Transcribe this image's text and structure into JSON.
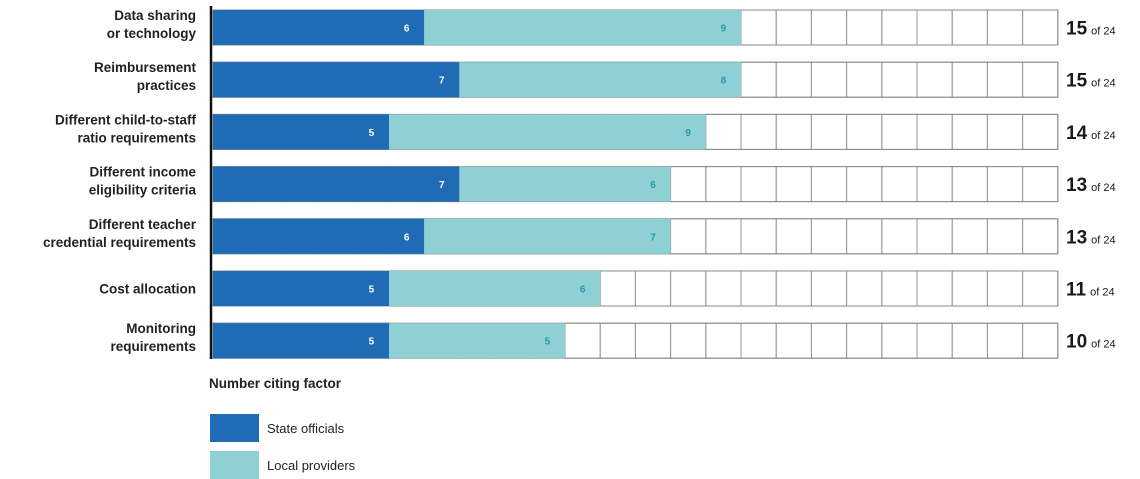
{
  "chart_data": {
    "type": "bar",
    "stacked": true,
    "categories": [
      "Data sharing or technology",
      "Reimbursement practices",
      "Different child-to-staff ratio requirements",
      "Different income eligibility criteria",
      "Different teacher credential requirements",
      "Cost allocation",
      "Monitoring requirements"
    ],
    "category_lines": [
      [
        "Data sharing",
        "or technology"
      ],
      [
        "Reimbursement",
        "practices"
      ],
      [
        "Different child-to-staff",
        "ratio requirements"
      ],
      [
        "Different income",
        "eligibility criteria"
      ],
      [
        "Different teacher",
        "credential requirements"
      ],
      [
        "Cost allocation"
      ],
      [
        "Monitoring",
        "requirements"
      ]
    ],
    "series": [
      {
        "name": "State officials",
        "color": "#1f6bb5",
        "label_color": "#ffffff",
        "values": [
          6,
          7,
          5,
          7,
          6,
          5,
          5
        ]
      },
      {
        "name": "Local providers",
        "color": "#8fd0d4",
        "label_color": "#2a9aa6",
        "values": [
          9,
          8,
          9,
          6,
          7,
          6,
          5
        ]
      }
    ],
    "totals": [
      15,
      15,
      14,
      13,
      13,
      11,
      10
    ],
    "total_suffix": "of 24",
    "max": 24,
    "xlabel": "Number citing factor",
    "legend_position": "bottom-left"
  }
}
